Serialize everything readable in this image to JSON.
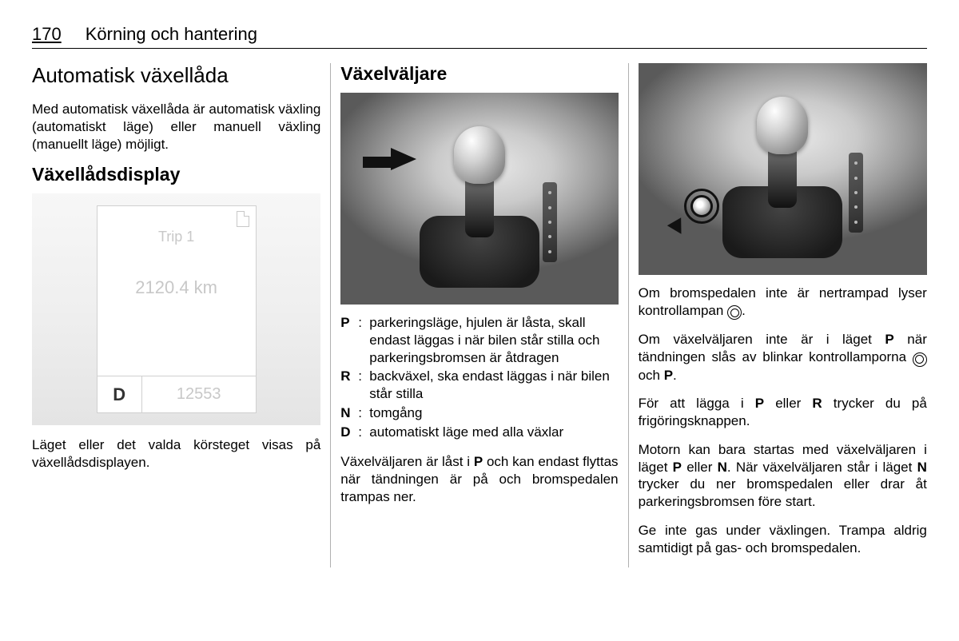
{
  "header": {
    "page_number": "170",
    "section": "Körning och hantering"
  },
  "col1": {
    "title": "Automatisk växellåda",
    "intro": "Med automatisk växellåda är automatisk växling (automatiskt läge) eller manuell växling (manuellt läge) möjligt.",
    "display_heading": "Växellådsdisplay",
    "display": {
      "trip_label": "Trip 1",
      "distance": "2120.4 km",
      "gear_letter": "D",
      "odo": "12553"
    },
    "caption": "Läget eller det valda körsteget visas på växellådsdisplayen."
  },
  "col2": {
    "title": "Växelväljare",
    "defs": {
      "P": "parkeringsläge, hjulen är låsta, skall endast läggas i när bilen står stilla och parkeringsbromsen är åtdragen",
      "R": "backväxel, ska endast läggas i när bilen står stilla",
      "N": "tomgång",
      "D": "automatiskt läge med alla växlar"
    },
    "lock_text_a": "Växelväljaren är låst i ",
    "lock_letter": "P",
    "lock_text_b": " och kan endast flyttas när tändningen är på och bromspedalen trampas ner."
  },
  "col3": {
    "p1a": "Om bromspedalen inte är nertrampad lyser kontrollampan ",
    "p1b": ".",
    "p2a": "Om växelväljaren inte är i läget ",
    "p2l1": "P",
    "p2b": " när tändningen slås av blinkar kontrollamporna ",
    "p2c": " och ",
    "p2l2": "P",
    "p2d": ".",
    "p3a": "För att lägga i ",
    "p3l1": "P",
    "p3b": " eller ",
    "p3l2": "R",
    "p3c": " trycker du på frigöringsknappen.",
    "p4a": "Motorn kan bara startas med växelväljaren i läget ",
    "p4l1": "P",
    "p4b": " eller ",
    "p4l2": "N",
    "p4c": ". När växelväljaren står i läget ",
    "p4l3": "N",
    "p4d": " trycker du ner bromspedalen eller drar åt parkeringsbromsen före start.",
    "p5": "Ge inte gas under växlingen. Trampa aldrig samtidigt på gas- och bromspedalen."
  }
}
